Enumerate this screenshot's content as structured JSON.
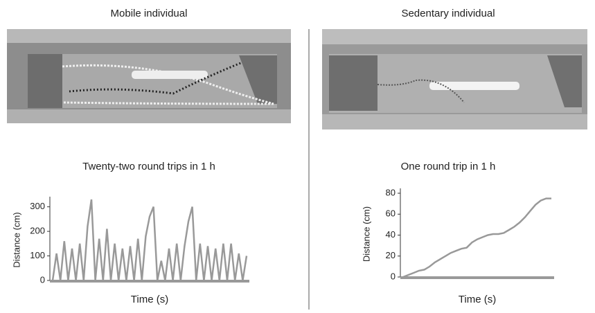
{
  "chart_data": [
    {
      "type": "line",
      "panel_title": "Mobile individual",
      "title": "Twenty-two round trips in 1 h",
      "x_label": "Time (s)",
      "y_label": "Distance (cm)",
      "color": "#999999",
      "values": [
        0,
        110,
        0,
        160,
        0,
        130,
        0,
        150,
        0,
        220,
        330,
        0,
        170,
        0,
        210,
        0,
        150,
        0,
        130,
        0,
        140,
        0,
        170,
        0,
        180,
        260,
        300,
        0,
        80,
        0,
        130,
        0,
        150,
        0,
        140,
        240,
        300,
        0,
        150,
        0,
        140,
        0,
        130,
        0,
        150,
        0,
        150,
        0,
        110,
        0,
        100
      ],
      "ylim": [
        0,
        330
      ],
      "yticks": [
        0,
        100,
        200,
        300
      ]
    },
    {
      "type": "line",
      "panel_title": "Sedentary individual",
      "title": "One round trip in 1 h",
      "x_label": "Time (s)",
      "y_label": "Distance (cm)",
      "color": "#999999",
      "values": [
        0,
        2,
        4,
        6,
        7,
        10,
        14,
        17,
        20,
        23,
        25,
        27,
        28,
        33,
        36,
        38,
        40,
        41,
        41,
        42,
        45,
        48,
        52,
        57,
        63,
        69,
        73,
        75,
        75
      ],
      "ylim": [
        0,
        82
      ],
      "yticks": [
        0,
        20,
        40,
        60,
        80
      ]
    }
  ]
}
